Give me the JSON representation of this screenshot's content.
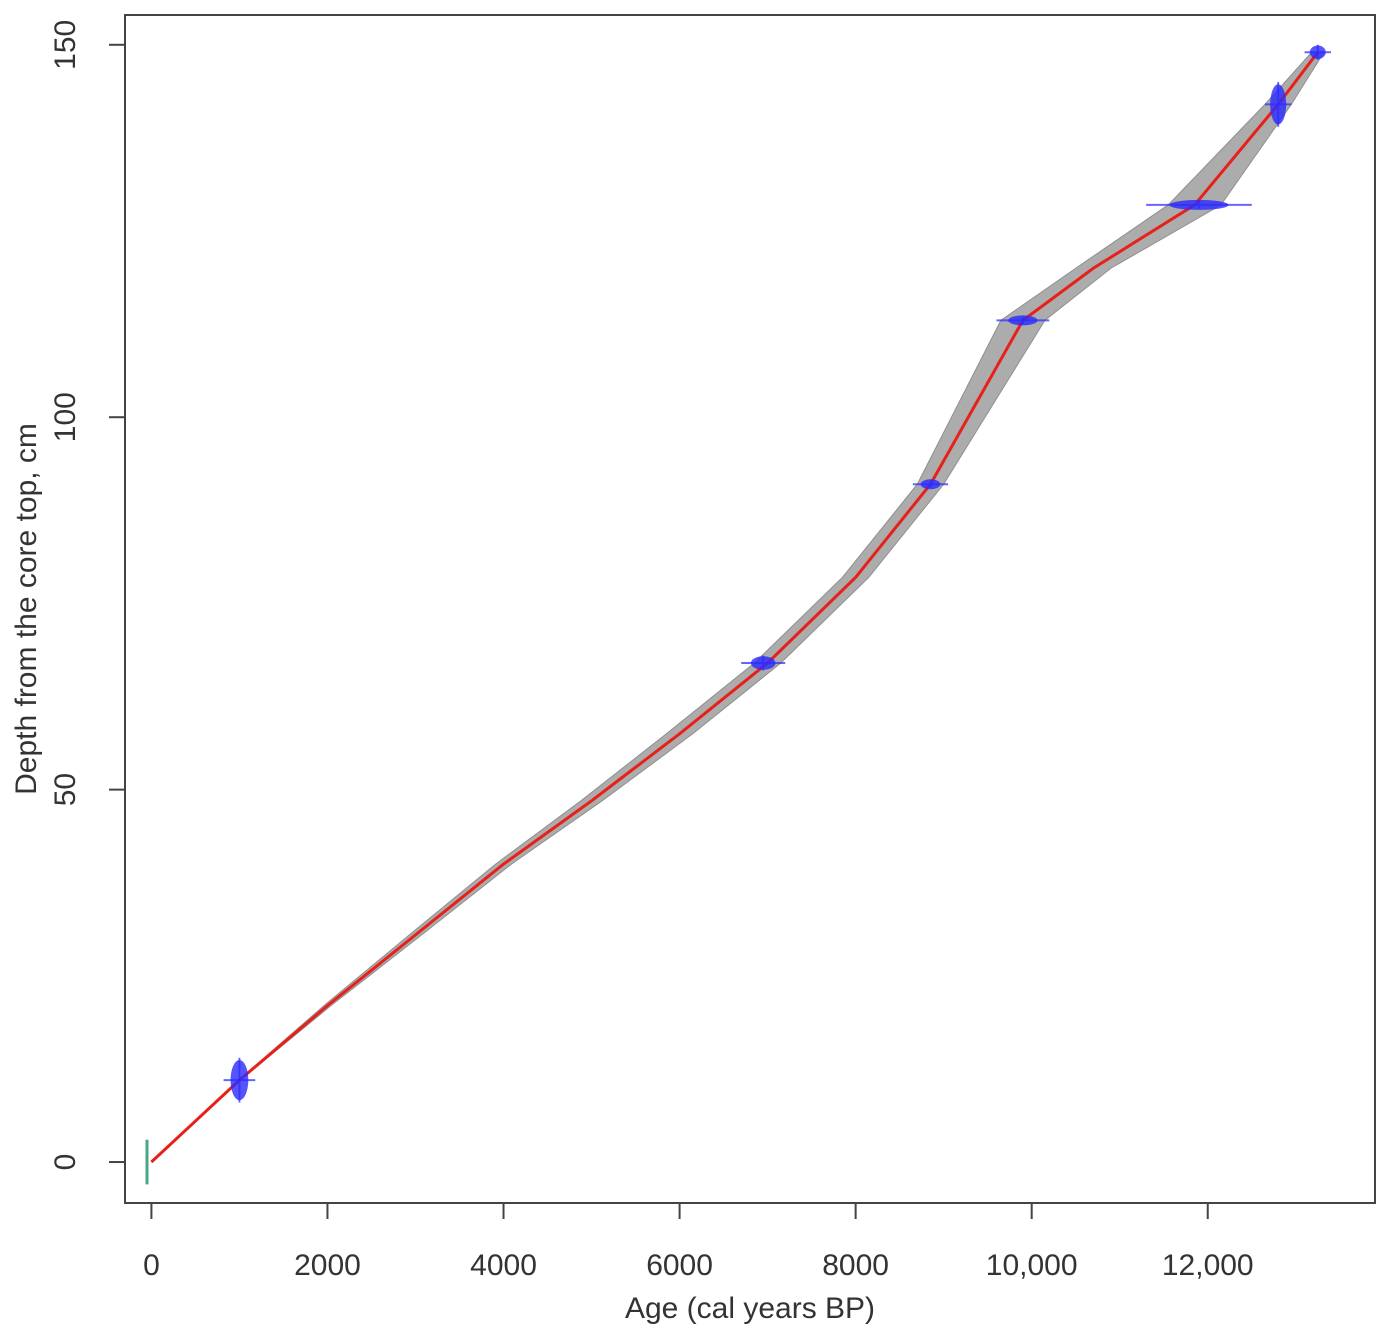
{
  "chart_data": {
    "type": "line",
    "title": "",
    "xlabel": "Age (cal years BP)",
    "ylabel": "Depth from the core top, cm",
    "xlim": [
      -300,
      13900
    ],
    "ylim": [
      -5.5,
      154
    ],
    "x_ticks": [
      0,
      2000,
      4000,
      6000,
      8000,
      10000,
      12000
    ],
    "x_tick_labels": [
      "0",
      "2000",
      "4000",
      "6000",
      "8000",
      "10,000",
      "12,000"
    ],
    "y_ticks": [
      0,
      50,
      100,
      150
    ],
    "y_tick_labels": [
      "0",
      "50",
      "100",
      "150"
    ],
    "grid": false,
    "legend": "none",
    "colors": {
      "model_line": "#e8201a",
      "uncertainty_band": "#a8a8a8",
      "dates": "#2a2aff",
      "core_top": "#4aa58a"
    },
    "age_depth_model": {
      "x": [
        0,
        1000,
        2000,
        3000,
        4000,
        5000,
        6000,
        7000,
        8000,
        8850,
        9900,
        10700,
        11850,
        12800,
        13250
      ],
      "y": [
        0,
        11,
        21,
        30.5,
        40,
        48.5,
        57.5,
        67,
        78.5,
        91,
        113,
        120,
        128.5,
        142,
        149
      ]
    },
    "uncertainty_band": {
      "x": [
        0,
        1000,
        2000,
        3000,
        4000,
        5000,
        6000,
        7000,
        8000,
        8850,
        9900,
        10700,
        11850,
        12800,
        13250
      ],
      "min_age": [
        0,
        990,
        1960,
        2930,
        3910,
        4880,
        5850,
        6850,
        7850,
        8700,
        9650,
        10500,
        11550,
        12650,
        13180
      ],
      "max_age": [
        0,
        1010,
        2040,
        3070,
        4090,
        5120,
        6150,
        7150,
        8150,
        9000,
        10150,
        10900,
        12150,
        12950,
        13320
      ]
    },
    "dated_samples": [
      {
        "age": 1000,
        "depth": 11,
        "age_err": 180,
        "depth_err": 3
      },
      {
        "age": 6950,
        "depth": 67,
        "age_err": 250,
        "depth_err": 1
      },
      {
        "age": 8850,
        "depth": 91,
        "age_err": 200,
        "depth_err": 0.5
      },
      {
        "age": 9900,
        "depth": 113,
        "age_err": 300,
        "depth_err": 0.5
      },
      {
        "age": 11900,
        "depth": 128.5,
        "age_err": 600,
        "depth_err": 0.5
      },
      {
        "age": 12800,
        "depth": 142,
        "age_err": 150,
        "depth_err": 3
      },
      {
        "age": 13250,
        "depth": 149,
        "age_err": 150,
        "depth_err": 1
      }
    ],
    "core_top": {
      "age": -50,
      "depth": 0,
      "depth_err": 3
    }
  }
}
